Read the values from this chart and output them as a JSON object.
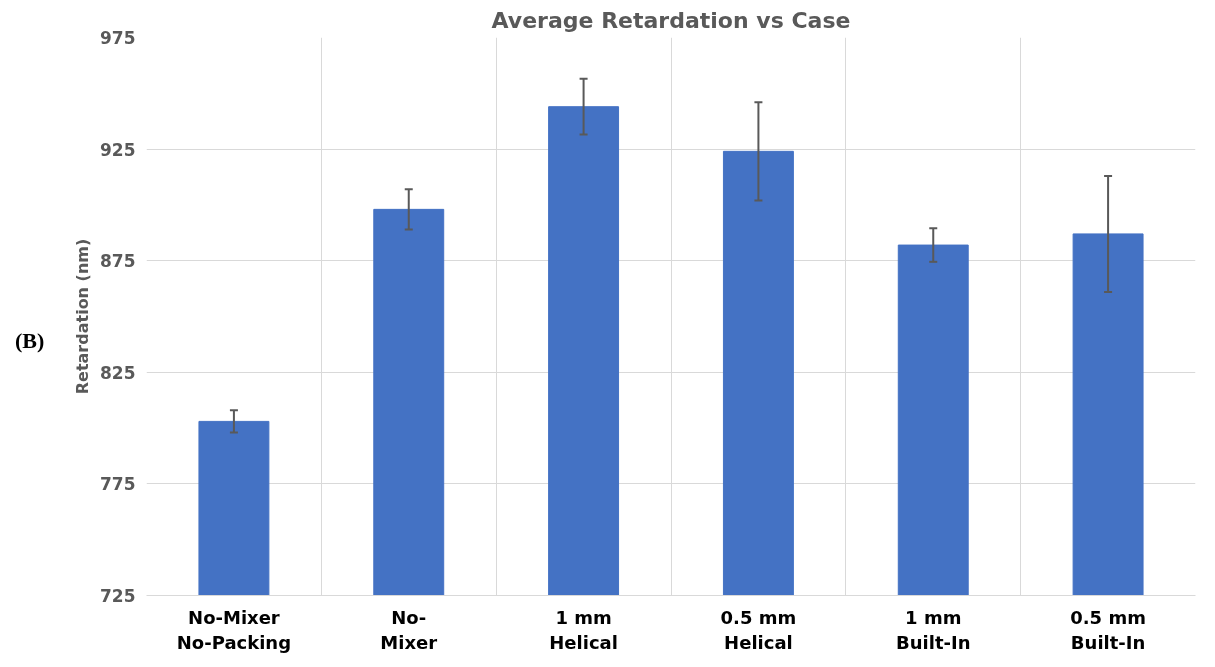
{
  "chart_data": {
    "type": "bar",
    "title": "Average Retardation vs Case",
    "ylabel": "Retardation (nm)",
    "categories": [
      "No-Mixer\nNo-Packing",
      "No-\nMixer",
      "1 mm\nHelical",
      "0.5 mm\nHelical",
      "1 mm\nBuilt-In",
      "0.5 mm\nBuilt-In"
    ],
    "values": [
      803,
      898,
      944,
      924,
      882,
      887
    ],
    "errors": [
      5,
      9,
      12.5,
      22,
      7.5,
      26
    ],
    "color": "#4472c4",
    "ylim": [
      725,
      975
    ],
    "yticks": [
      725,
      775,
      825,
      875,
      925,
      975
    ],
    "grid": true,
    "annotations": [
      "(B)"
    ]
  }
}
